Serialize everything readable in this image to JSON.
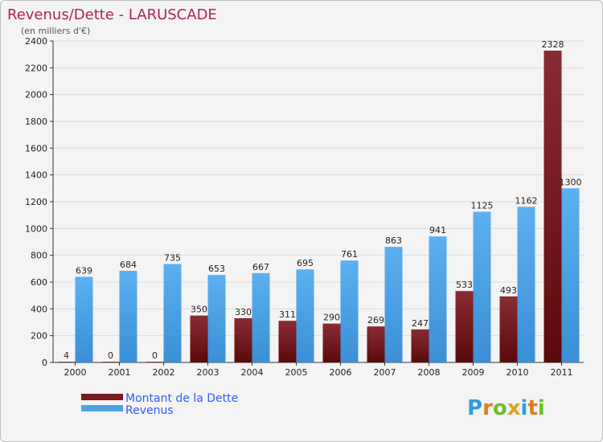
{
  "chart_data": {
    "type": "bar",
    "title": "Revenus/Dette - LARUSCADE",
    "subtitle": "(en milliers d'€)",
    "categories": [
      "2000",
      "2001",
      "2002",
      "2003",
      "2004",
      "2005",
      "2006",
      "2007",
      "2008",
      "2009",
      "2010",
      "2011"
    ],
    "series": [
      {
        "name": "Montant de la Dette",
        "color": "#7a1a1e",
        "values": [
          4,
          0,
          0,
          350,
          330,
          311,
          290,
          269,
          247,
          533,
          493,
          2328
        ]
      },
      {
        "name": "Revenus",
        "color": "#4ea3e6",
        "values": [
          639,
          684,
          735,
          653,
          667,
          695,
          761,
          863,
          941,
          1125,
          1162,
          1300
        ]
      }
    ],
    "ylim": [
      0,
      2400
    ],
    "yticks": [
      0,
      200,
      400,
      600,
      800,
      1000,
      1200,
      1400,
      1600,
      1800,
      2000,
      2200,
      2400
    ],
    "grid": true,
    "legend": "bottom-left"
  },
  "logo": {
    "text": "Proxiti",
    "letters": [
      "P",
      "r",
      "o",
      "x",
      "i",
      "t",
      "i"
    ],
    "colors": [
      "#2d9de0",
      "#e07b1f",
      "#6cbf2a",
      "#e0a11f",
      "#2d9de0",
      "#e07b1f",
      "#6cbf2a"
    ]
  }
}
